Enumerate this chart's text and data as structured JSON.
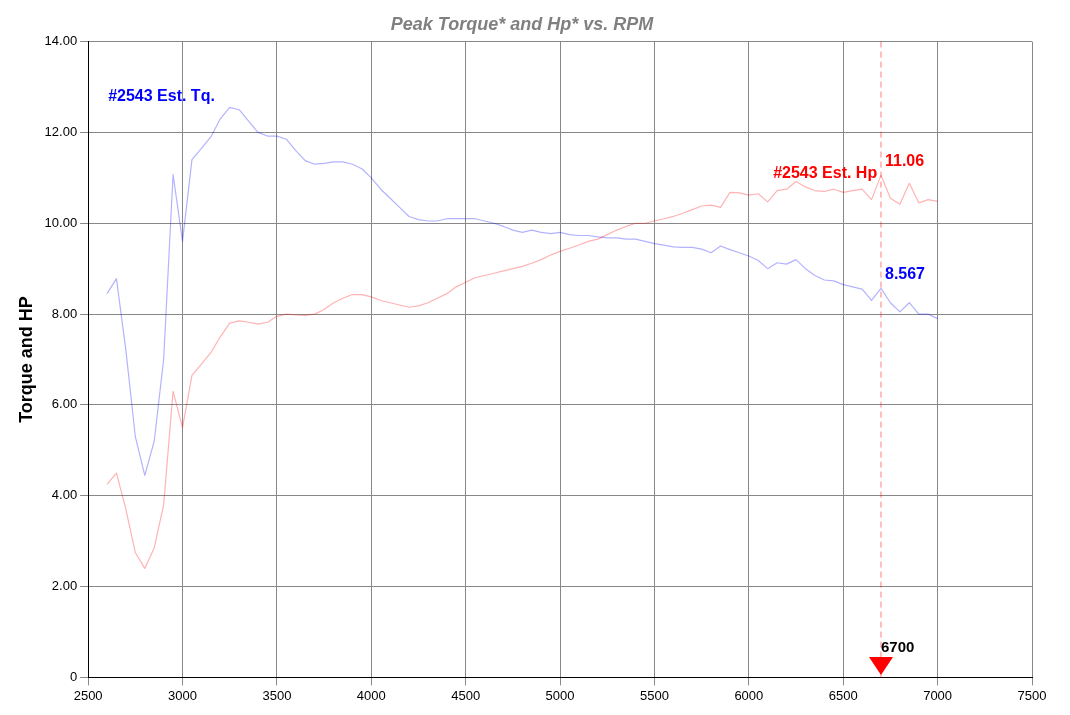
{
  "chart_data": {
    "type": "line",
    "title": "Peak Torque* and Hp* vs. RPM",
    "ylabel": "Torque and HP",
    "x": [
      2600,
      2650,
      2700,
      2750,
      2800,
      2850,
      2900,
      2950,
      3000,
      3050,
      3100,
      3150,
      3200,
      3250,
      3300,
      3350,
      3400,
      3450,
      3500,
      3550,
      3600,
      3650,
      3700,
      3750,
      3800,
      3850,
      3900,
      3950,
      4000,
      4050,
      4100,
      4150,
      4200,
      4250,
      4300,
      4350,
      4400,
      4450,
      4500,
      4550,
      4600,
      4650,
      4700,
      4750,
      4800,
      4850,
      4900,
      4950,
      5000,
      5050,
      5100,
      5150,
      5200,
      5250,
      5300,
      5350,
      5400,
      5450,
      5500,
      5550,
      5600,
      5650,
      5700,
      5750,
      5800,
      5850,
      5900,
      5950,
      6000,
      6050,
      6100,
      6150,
      6200,
      6250,
      6300,
      6350,
      6400,
      6450,
      6500,
      6550,
      6600,
      6650,
      6700,
      6750,
      6800,
      6850,
      6900,
      6950,
      7000
    ],
    "series": [
      {
        "name": "#2543 Est. Tq.",
        "color": "#0000ff",
        "values": [
          8.45,
          8.78,
          7.2,
          5.3,
          4.45,
          5.2,
          7.0,
          11.07,
          9.6,
          11.4,
          11.65,
          11.9,
          12.3,
          12.55,
          12.5,
          12.25,
          12.0,
          11.92,
          11.92,
          11.85,
          11.6,
          11.38,
          11.3,
          11.32,
          11.35,
          11.35,
          11.3,
          11.2,
          11.0,
          10.75,
          10.55,
          10.35,
          10.15,
          10.08,
          10.05,
          10.05,
          10.1,
          10.1,
          10.1,
          10.1,
          10.05,
          10.0,
          9.93,
          9.85,
          9.8,
          9.85,
          9.8,
          9.77,
          9.8,
          9.75,
          9.73,
          9.73,
          9.7,
          9.68,
          9.68,
          9.65,
          9.65,
          9.6,
          9.55,
          9.52,
          9.48,
          9.47,
          9.47,
          9.43,
          9.35,
          9.5,
          9.42,
          9.35,
          9.28,
          9.18,
          9.0,
          9.13,
          9.1,
          9.2,
          9.0,
          8.85,
          8.75,
          8.73,
          8.65,
          8.6,
          8.55,
          8.3,
          8.567,
          8.25,
          8.05,
          8.25,
          8.0,
          8.0,
          7.9
        ]
      },
      {
        "name": "#2543 Est. Hp",
        "color": "#ff0000",
        "values": [
          4.25,
          4.5,
          3.7,
          2.75,
          2.4,
          2.85,
          3.8,
          6.3,
          5.5,
          6.65,
          6.9,
          7.15,
          7.5,
          7.8,
          7.85,
          7.82,
          7.78,
          7.82,
          7.95,
          8.0,
          7.98,
          7.97,
          8.0,
          8.1,
          8.25,
          8.35,
          8.43,
          8.43,
          8.38,
          8.3,
          8.25,
          8.2,
          8.15,
          8.18,
          8.25,
          8.35,
          8.45,
          8.6,
          8.7,
          8.8,
          8.85,
          8.9,
          8.95,
          9.0,
          9.05,
          9.12,
          9.2,
          9.3,
          9.38,
          9.45,
          9.52,
          9.6,
          9.65,
          9.75,
          9.85,
          9.93,
          10.0,
          10.0,
          10.05,
          10.1,
          10.15,
          10.22,
          10.3,
          10.38,
          10.4,
          10.35,
          10.68,
          10.67,
          10.62,
          10.65,
          10.47,
          10.72,
          10.75,
          10.92,
          10.8,
          10.72,
          10.7,
          10.75,
          10.68,
          10.72,
          10.75,
          10.52,
          11.06,
          10.55,
          10.42,
          10.88,
          10.45,
          10.52,
          10.48
        ]
      }
    ],
    "annotations": [
      {
        "text": "11.06",
        "x": 6700,
        "y": 11.06
      },
      {
        "text": "8.567",
        "x": 6700,
        "y": 8.567
      }
    ],
    "ref_lines": [
      {
        "axis": "x",
        "value": 6700,
        "label": "6700",
        "color": "#ff0000",
        "line_style": "dashed"
      }
    ],
    "xlim": [
      2500,
      7500
    ],
    "xticks": [
      2500,
      3000,
      3500,
      4000,
      4500,
      5000,
      5500,
      6000,
      6500,
      7000,
      7500
    ],
    "ylim": [
      0,
      14
    ],
    "yticks": [
      {
        "value": 0,
        "label": "0"
      },
      {
        "value": 2,
        "label": "2.00"
      },
      {
        "value": 4,
        "label": "4.00"
      },
      {
        "value": 6,
        "label": "6.00"
      },
      {
        "value": 8,
        "label": "8.00"
      },
      {
        "value": 10,
        "label": "10.00"
      },
      {
        "value": 12,
        "label": "12.00"
      },
      {
        "value": 14,
        "label": "14.00"
      }
    ],
    "grid": true,
    "legend": false,
    "marker": "none",
    "line_style": "solid"
  }
}
